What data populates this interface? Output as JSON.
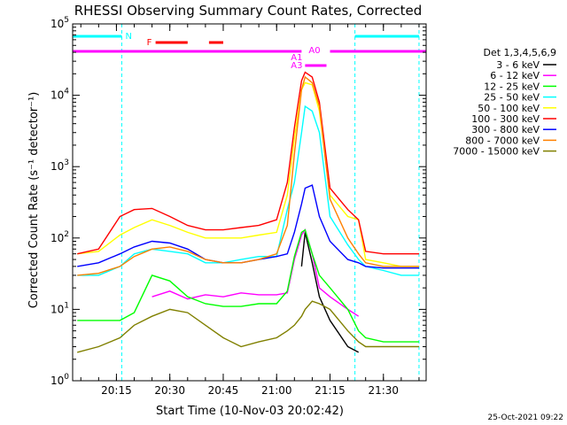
{
  "chart_data": {
    "type": "line",
    "title": "RHESSI Observing Summary Count Rates, Corrected",
    "xlabel": "Start Time (10-Nov-03 20:02:42)",
    "ylabel": "Corrected Count Rate (s⁻¹ detector⁻¹)",
    "yscale": "log",
    "xlim": [
      "20:02:42",
      "21:42:00"
    ],
    "ylim": [
      1,
      100000
    ],
    "x_ticks": [
      "20:15",
      "20:30",
      "20:45",
      "21:00",
      "21:15",
      "21:30"
    ],
    "y_ticks": [
      {
        "base": "10",
        "exp": "0"
      },
      {
        "base": "10",
        "exp": "1"
      },
      {
        "base": "10",
        "exp": "2"
      },
      {
        "base": "10",
        "exp": "3"
      },
      {
        "base": "10",
        "exp": "4"
      },
      {
        "base": "10",
        "exp": "5"
      }
    ],
    "legend_title": "Det 1,3,4,5,6,9",
    "legend_position": "right",
    "x": [
      "20:04",
      "20:10",
      "20:16",
      "20:20",
      "20:25",
      "20:30",
      "20:35",
      "20:40",
      "20:45",
      "20:50",
      "20:55",
      "21:00",
      "21:03",
      "21:05",
      "21:07",
      "21:08",
      "21:10",
      "21:12",
      "21:15",
      "21:20",
      "21:23",
      "21:25",
      "21:30",
      "21:35",
      "21:40"
    ],
    "series": [
      {
        "name": "3 - 6 keV",
        "color": "#000000",
        "values": [
          null,
          null,
          null,
          null,
          null,
          null,
          null,
          null,
          null,
          null,
          null,
          null,
          null,
          null,
          40,
          120,
          45,
          15,
          7,
          3,
          2.5,
          null,
          null,
          null,
          null
        ]
      },
      {
        "name": "6 - 12 keV",
        "color": "#ff00ff",
        "values": [
          null,
          null,
          null,
          null,
          15,
          18,
          14,
          16,
          15,
          17,
          16,
          16,
          17,
          50,
          110,
          130,
          60,
          20,
          15,
          10,
          8,
          null,
          null,
          null,
          null
        ]
      },
      {
        "name": "12 - 25 keV",
        "color": "#00ff00",
        "values": [
          7,
          7,
          7,
          9,
          30,
          25,
          15,
          12,
          11,
          11,
          12,
          12,
          18,
          55,
          120,
          130,
          60,
          30,
          20,
          10,
          5,
          4,
          3.5,
          3.5,
          3.5
        ]
      },
      {
        "name": "25 - 50 keV",
        "color": "#00ffff",
        "values": [
          30,
          30,
          40,
          60,
          70,
          65,
          60,
          45,
          45,
          50,
          55,
          55,
          250,
          600,
          3000,
          7000,
          6000,
          3000,
          200,
          80,
          50,
          40,
          35,
          30,
          30
        ]
      },
      {
        "name": "50 - 100 keV",
        "color": "#ffff00",
        "values": [
          60,
          65,
          110,
          140,
          180,
          150,
          120,
          100,
          100,
          100,
          110,
          120,
          400,
          2500,
          12000,
          15000,
          14000,
          6000,
          400,
          200,
          180,
          50,
          45,
          40,
          40
        ]
      },
      {
        "name": "100 - 300 keV",
        "color": "#ff0000",
        "values": [
          60,
          70,
          200,
          250,
          260,
          200,
          150,
          130,
          130,
          140,
          150,
          180,
          600,
          3500,
          16000,
          21000,
          18000,
          8000,
          500,
          250,
          180,
          65,
          60,
          60,
          60
        ]
      },
      {
        "name": "300 - 800 keV",
        "color": "#0000ff",
        "values": [
          40,
          45,
          60,
          75,
          90,
          85,
          70,
          50,
          45,
          45,
          50,
          55,
          60,
          120,
          300,
          500,
          550,
          200,
          90,
          50,
          45,
          40,
          38,
          38,
          38
        ]
      },
      {
        "name": "800 - 7000 keV",
        "color": "#ff8000",
        "values": [
          30,
          32,
          40,
          55,
          70,
          75,
          65,
          50,
          45,
          45,
          50,
          60,
          150,
          1500,
          12000,
          18000,
          15000,
          7000,
          350,
          100,
          60,
          45,
          40,
          40,
          40
        ]
      },
      {
        "name": "7000 - 15000 keV",
        "color": "#808000",
        "values": [
          2.5,
          3,
          4,
          6,
          8,
          10,
          9,
          6,
          4,
          3,
          3.5,
          4,
          5,
          6,
          8,
          10,
          13,
          12,
          10,
          5,
          3.5,
          3,
          3,
          3,
          3
        ]
      }
    ],
    "annotations": [
      {
        "label": "N",
        "color": "#00ffff"
      },
      {
        "label": "F",
        "color": "#ff0000"
      },
      {
        "label": "A0",
        "color": "#ff00ff"
      },
      {
        "label": "A1",
        "color": "#ff00ff"
      },
      {
        "label": "A3",
        "color": "#ff00ff"
      }
    ],
    "intervals": {
      "night": {
        "color": "#00ffff",
        "spans": [
          [
            "20:02:42",
            "20:16:30"
          ],
          [
            "21:22",
            "21:40"
          ]
        ],
        "markers": [
          "20:16:30",
          "21:22",
          "21:40"
        ]
      },
      "flare": {
        "color": "#ff0000",
        "spans": [
          [
            "20:26",
            "20:35"
          ],
          [
            "20:41",
            "20:45"
          ]
        ]
      },
      "attenuator_a0": {
        "color": "#ff00ff",
        "spans": [
          [
            "20:02:42",
            "21:07"
          ],
          [
            "21:15",
            "21:42"
          ]
        ]
      },
      "attenuator_a3": {
        "color": "#ff00ff",
        "spans": [
          [
            "21:08",
            "21:14"
          ]
        ]
      }
    },
    "grid": false
  },
  "footer": {
    "timestamp": "25-Oct-2021 09:22"
  }
}
